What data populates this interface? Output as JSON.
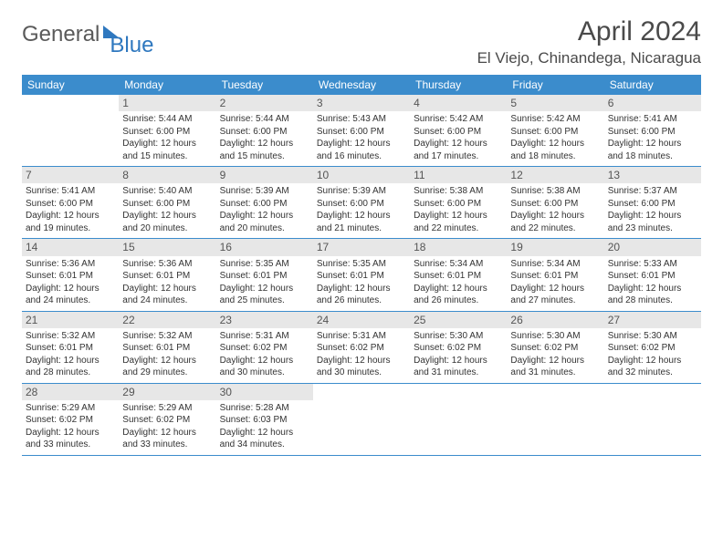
{
  "logo": {
    "part1": "General",
    "part2": "Blue"
  },
  "title": "April 2024",
  "location": "El Viejo, Chinandega, Nicaragua",
  "colors": {
    "header_bg": "#3b8ccc",
    "header_text": "#ffffff",
    "daynum_bg": "#e7e7e7",
    "daynum_text": "#555555",
    "body_text": "#333333",
    "rule": "#3b8ccc",
    "logo_gray": "#5a5a5a",
    "logo_blue": "#2f78bf",
    "page_bg": "#ffffff"
  },
  "fonts": {
    "family": "Arial, Helvetica, sans-serif",
    "title_size_pt": 22,
    "location_size_pt": 13,
    "dow_size_pt": 9,
    "daynum_size_pt": 9,
    "body_size_pt": 7.5
  },
  "days_of_week": [
    "Sunday",
    "Monday",
    "Tuesday",
    "Wednesday",
    "Thursday",
    "Friday",
    "Saturday"
  ],
  "first_weekday_offset": 1,
  "days": [
    {
      "n": 1,
      "sunrise": "5:44 AM",
      "sunset": "6:00 PM",
      "daylight": "12 hours and 15 minutes."
    },
    {
      "n": 2,
      "sunrise": "5:44 AM",
      "sunset": "6:00 PM",
      "daylight": "12 hours and 15 minutes."
    },
    {
      "n": 3,
      "sunrise": "5:43 AM",
      "sunset": "6:00 PM",
      "daylight": "12 hours and 16 minutes."
    },
    {
      "n": 4,
      "sunrise": "5:42 AM",
      "sunset": "6:00 PM",
      "daylight": "12 hours and 17 minutes."
    },
    {
      "n": 5,
      "sunrise": "5:42 AM",
      "sunset": "6:00 PM",
      "daylight": "12 hours and 18 minutes."
    },
    {
      "n": 6,
      "sunrise": "5:41 AM",
      "sunset": "6:00 PM",
      "daylight": "12 hours and 18 minutes."
    },
    {
      "n": 7,
      "sunrise": "5:41 AM",
      "sunset": "6:00 PM",
      "daylight": "12 hours and 19 minutes."
    },
    {
      "n": 8,
      "sunrise": "5:40 AM",
      "sunset": "6:00 PM",
      "daylight": "12 hours and 20 minutes."
    },
    {
      "n": 9,
      "sunrise": "5:39 AM",
      "sunset": "6:00 PM",
      "daylight": "12 hours and 20 minutes."
    },
    {
      "n": 10,
      "sunrise": "5:39 AM",
      "sunset": "6:00 PM",
      "daylight": "12 hours and 21 minutes."
    },
    {
      "n": 11,
      "sunrise": "5:38 AM",
      "sunset": "6:00 PM",
      "daylight": "12 hours and 22 minutes."
    },
    {
      "n": 12,
      "sunrise": "5:38 AM",
      "sunset": "6:00 PM",
      "daylight": "12 hours and 22 minutes."
    },
    {
      "n": 13,
      "sunrise": "5:37 AM",
      "sunset": "6:00 PM",
      "daylight": "12 hours and 23 minutes."
    },
    {
      "n": 14,
      "sunrise": "5:36 AM",
      "sunset": "6:01 PM",
      "daylight": "12 hours and 24 minutes."
    },
    {
      "n": 15,
      "sunrise": "5:36 AM",
      "sunset": "6:01 PM",
      "daylight": "12 hours and 24 minutes."
    },
    {
      "n": 16,
      "sunrise": "5:35 AM",
      "sunset": "6:01 PM",
      "daylight": "12 hours and 25 minutes."
    },
    {
      "n": 17,
      "sunrise": "5:35 AM",
      "sunset": "6:01 PM",
      "daylight": "12 hours and 26 minutes."
    },
    {
      "n": 18,
      "sunrise": "5:34 AM",
      "sunset": "6:01 PM",
      "daylight": "12 hours and 26 minutes."
    },
    {
      "n": 19,
      "sunrise": "5:34 AM",
      "sunset": "6:01 PM",
      "daylight": "12 hours and 27 minutes."
    },
    {
      "n": 20,
      "sunrise": "5:33 AM",
      "sunset": "6:01 PM",
      "daylight": "12 hours and 28 minutes."
    },
    {
      "n": 21,
      "sunrise": "5:32 AM",
      "sunset": "6:01 PM",
      "daylight": "12 hours and 28 minutes."
    },
    {
      "n": 22,
      "sunrise": "5:32 AM",
      "sunset": "6:01 PM",
      "daylight": "12 hours and 29 minutes."
    },
    {
      "n": 23,
      "sunrise": "5:31 AM",
      "sunset": "6:02 PM",
      "daylight": "12 hours and 30 minutes."
    },
    {
      "n": 24,
      "sunrise": "5:31 AM",
      "sunset": "6:02 PM",
      "daylight": "12 hours and 30 minutes."
    },
    {
      "n": 25,
      "sunrise": "5:30 AM",
      "sunset": "6:02 PM",
      "daylight": "12 hours and 31 minutes."
    },
    {
      "n": 26,
      "sunrise": "5:30 AM",
      "sunset": "6:02 PM",
      "daylight": "12 hours and 31 minutes."
    },
    {
      "n": 27,
      "sunrise": "5:30 AM",
      "sunset": "6:02 PM",
      "daylight": "12 hours and 32 minutes."
    },
    {
      "n": 28,
      "sunrise": "5:29 AM",
      "sunset": "6:02 PM",
      "daylight": "12 hours and 33 minutes."
    },
    {
      "n": 29,
      "sunrise": "5:29 AM",
      "sunset": "6:02 PM",
      "daylight": "12 hours and 33 minutes."
    },
    {
      "n": 30,
      "sunrise": "5:28 AM",
      "sunset": "6:03 PM",
      "daylight": "12 hours and 34 minutes."
    }
  ],
  "labels": {
    "sunrise_prefix": "Sunrise: ",
    "sunset_prefix": "Sunset: ",
    "daylight_prefix": "Daylight: "
  }
}
